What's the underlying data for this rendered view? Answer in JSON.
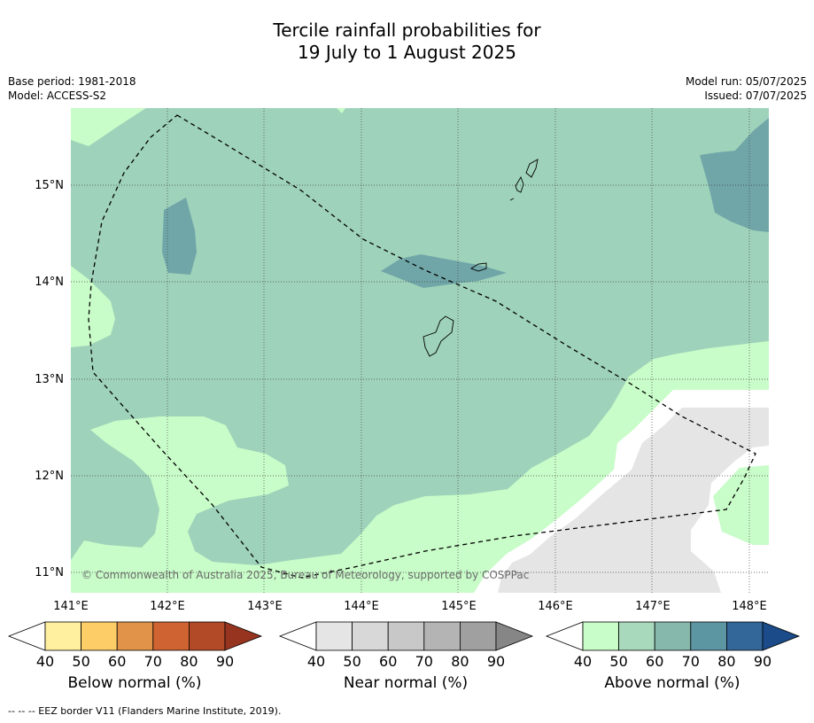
{
  "header": {
    "title_line1": "Tercile rainfall probabilities for",
    "title_line2": "19 July to 1 August 2025",
    "base_period": "Base period: 1981-2018",
    "model": "Model: ACCESS-S2",
    "model_run": "Model run: 05/07/2025",
    "issued": "Issued: 07/07/2025"
  },
  "map": {
    "lat_labels": [
      "15°N",
      "14°N",
      "13°N",
      "12°N",
      "11°N"
    ],
    "lon_labels": [
      "141°E",
      "142°E",
      "143°E",
      "144°E",
      "145°E",
      "146°E",
      "147°E",
      "148°E"
    ],
    "copyright": "© Commonwealth of Australia 2025, Bureau of Meteorology, supported by COSPPac",
    "colors": {
      "above_50": "#c8fcc8",
      "above_60": "#9ed2ba",
      "above_70": "#70a6a8",
      "near_50": "#e5e5e5",
      "land_outline": "#000000"
    }
  },
  "colorbars": [
    {
      "name": "below",
      "title": "Below normal (%)",
      "ticks": [
        "40",
        "50",
        "60",
        "70",
        "80",
        "90"
      ],
      "colors": [
        "#fff0a0",
        "#fdcd68",
        "#e19449",
        "#cf6332",
        "#b34a27",
        "#96341f"
      ]
    },
    {
      "name": "near",
      "title": "Near normal (%)",
      "ticks": [
        "40",
        "50",
        "60",
        "70",
        "80",
        "90"
      ],
      "colors": [
        "#e5e5e5",
        "#d8d8d8",
        "#c8c8c8",
        "#b4b4b4",
        "#a0a0a0",
        "#868686"
      ]
    },
    {
      "name": "above",
      "title": "Above normal (%)",
      "ticks": [
        "40",
        "50",
        "60",
        "70",
        "80",
        "90"
      ],
      "colors": [
        "#c8fcc8",
        "#a9d9bc",
        "#86b8ac",
        "#5d96a3",
        "#33679a",
        "#1b4b88"
      ]
    }
  ],
  "footnote": "--  --  -- EEZ border V11 (Flanders Marine Institute, 2019)."
}
